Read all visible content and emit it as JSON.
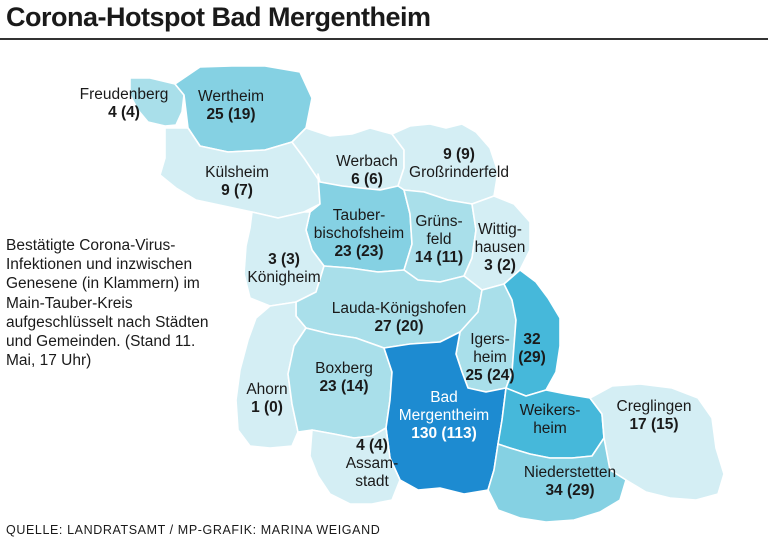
{
  "title": "Corona-Hotspot Bad Mergentheim",
  "legend": "Bestätigte Corona-Virus-Infektionen und inzwischen Genesene (in Klammern) im Main-Tauber-Kreis aufgeschlüsselt nach Städten und Gemeinden. (Stand 11. Mai, 17 Uhr)",
  "source": "QUELLE: LANDRATSAMT / MP-GRAFIK: MARINA WEIGAND",
  "colors": {
    "level1": "#d4eef4",
    "level2": "#a9dfea",
    "level3": "#85d1e3",
    "level4": "#46b8da",
    "level5": "#1d8bd1",
    "border": "#ffffff"
  },
  "regions": {
    "freudenberg": {
      "name": "Freudenberg",
      "value": "4 (4)",
      "level": 2
    },
    "wertheim": {
      "name": "Wertheim",
      "value": "25 (19)",
      "level": 3
    },
    "kuelsheim": {
      "name": "Külsheim",
      "value": "9 (7)",
      "level": 1
    },
    "werbach": {
      "name": "Werbach",
      "value": "6 (6)",
      "level": 1
    },
    "grossrinderfeld": {
      "name": "Großrinderfeld",
      "value": "9 (9)",
      "level": 1
    },
    "tauberbischofsheim": {
      "name": "Tauber-\nbischofsheim",
      "name_line1": "Tauber-",
      "name_line2": "bischofsheim",
      "value": "23 (23)",
      "level": 3
    },
    "gruensfeld": {
      "name_line1": "Grüns-",
      "name_line2": "feld",
      "value": "14 (11)",
      "level": 2
    },
    "wittighausen": {
      "name_line1": "Wittig-",
      "name_line2": "hausen",
      "value": "3 (2)",
      "level": 1
    },
    "koenigheim": {
      "name": "Königheim",
      "value": "3 (3)",
      "level": 1
    },
    "lauda": {
      "name": "Lauda-Königshofen",
      "value": "27 (20)",
      "level": 2
    },
    "boxberg": {
      "name": "Boxberg",
      "value": "23 (14)",
      "level": 2
    },
    "ahorn": {
      "name": "Ahorn",
      "value": "1 (0)",
      "level": 1
    },
    "igersheim": {
      "name_line1": "Igers-",
      "name_line2": "heim",
      "value": "25 (24)",
      "level": 2
    },
    "unnamed32": {
      "value_line1": "32",
      "value_line2": "(29)",
      "level": 4
    },
    "badmergentheim": {
      "name_line1": "Bad",
      "name_line2": "Mergentheim",
      "value": "130 (113)",
      "level": 5
    },
    "weikersheim": {
      "name_line1": "Weikers-",
      "name_line2": "heim",
      "level": 4
    },
    "creglingen": {
      "name": "Creglingen",
      "value": "17 (15)",
      "level": 1
    },
    "assamstadt": {
      "name_line1": "Assam-",
      "name_line2": "stadt",
      "value": "4 (4)",
      "level": 1
    },
    "niederstetten": {
      "name": "Niederstetten",
      "value": "34 (29)",
      "level": 3
    }
  }
}
